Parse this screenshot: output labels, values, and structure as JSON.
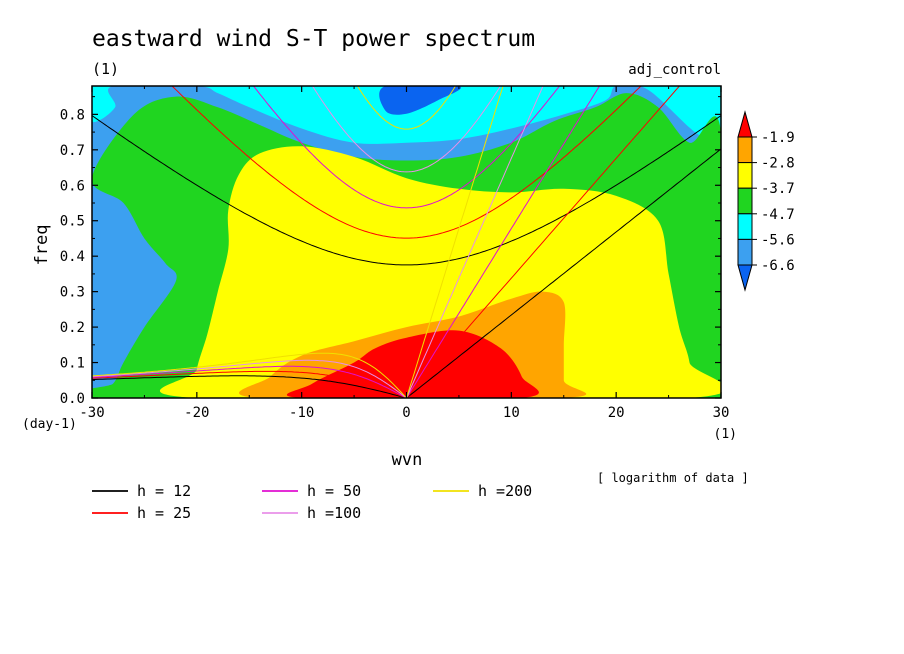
{
  "chart_data": {
    "type": "heatmap",
    "title": "eastward wind S-T power spectrum",
    "subtitle_left": "(1)",
    "subtitle_right": "adj_control",
    "xlabel": "wvn",
    "ylabel": "freq",
    "x_unit": "(1)",
    "y_unit": "(day-1)",
    "xlim": [
      -30,
      30
    ],
    "ylim": [
      0,
      0.88
    ],
    "xticks": [
      -30,
      -20,
      -10,
      0,
      10,
      20,
      30
    ],
    "xtick_labels": [
      "-30",
      "-20",
      "-10",
      "0",
      "10",
      "20",
      "30"
    ],
    "yticks": [
      0,
      0.1,
      0.2,
      0.3,
      0.4,
      0.5,
      0.6,
      0.7,
      0.8
    ],
    "ytick_labels": [
      "0.0",
      "0.1",
      "0.2",
      "0.3",
      "0.4",
      "0.5",
      "0.6",
      "0.7",
      "0.8"
    ],
    "note": "[ logarithm of data ]",
    "colorbar": {
      "levels": [
        "-1.9",
        "-2.8",
        "-3.7",
        "-4.7",
        "-5.6",
        "-6.6"
      ],
      "colors": [
        "#0a64f0",
        "#3ca0f0",
        "#00ffff",
        "#20d520",
        "#ffff00",
        "#ffa500",
        "#ff0000"
      ]
    },
    "fill_colors": {
      "l0": "#3ca0f0",
      "l1": "#00ffff",
      "l2": "#20d520",
      "l3": "#ffff00",
      "l4": "#ffa500",
      "l5": "#ff0000",
      "top": "#0a64f0"
    },
    "dispersion_curves": [
      {
        "label": "h = 12",
        "h": 12,
        "color": "#000000"
      },
      {
        "label": "h = 25",
        "h": 25,
        "color": "#ff0000"
      },
      {
        "label": "h = 50",
        "h": 50,
        "color": "#e010d0"
      },
      {
        "label": "h =100",
        "h": 100,
        "color": "#e890e8"
      },
      {
        "label": "h =200",
        "h": 200,
        "color": "#f0e000"
      }
    ],
    "regions": {
      "blue_top": [
        [
          -2,
          0.88
        ],
        [
          -2,
          0.81
        ],
        [
          0,
          0.802
        ],
        [
          3,
          0.84
        ],
        [
          5,
          0.88
        ]
      ],
      "l1": [
        [
          -28,
          0.88
        ],
        [
          -27.8,
          0.82
        ],
        [
          -30,
          0.78
        ],
        [
          -30,
          0.88
        ],
        [
          30,
          0.88
        ],
        [
          30,
          0.76
        ],
        [
          28,
          0.74
        ],
        [
          23,
          0.87
        ],
        [
          20,
          0.88
        ],
        [
          19,
          0.84
        ],
        [
          15,
          0.8
        ],
        [
          10,
          0.76
        ],
        [
          5,
          0.73
        ],
        [
          0,
          0.72
        ],
        [
          -5,
          0.72
        ],
        [
          -10,
          0.76
        ],
        [
          -15,
          0.82
        ],
        [
          -18,
          0.86
        ],
        [
          -20,
          0.88
        ]
      ],
      "l2": [
        [
          -30,
          0.62
        ],
        [
          -27,
          0.55
        ],
        [
          -25,
          0.45
        ],
        [
          -23,
          0.38
        ],
        [
          -22,
          0.33
        ],
        [
          -25,
          0.2
        ],
        [
          -27,
          0.1
        ],
        [
          -28,
          0.04
        ],
        [
          -30,
          0.0
        ],
        [
          30,
          0.0
        ],
        [
          30,
          0.75
        ],
        [
          27,
          0.72
        ],
        [
          24,
          0.82
        ],
        [
          21,
          0.86
        ],
        [
          18,
          0.82
        ],
        [
          14,
          0.78
        ],
        [
          10,
          0.72
        ],
        [
          5,
          0.68
        ],
        [
          0,
          0.67
        ],
        [
          -5,
          0.68
        ],
        [
          -10,
          0.72
        ],
        [
          -14,
          0.77
        ],
        [
          -18,
          0.82
        ],
        [
          -22,
          0.85
        ],
        [
          -26,
          0.8
        ]
      ],
      "l3": [
        [
          -20,
          0.0
        ],
        [
          -20,
          0.08
        ],
        [
          -19,
          0.18
        ],
        [
          -18,
          0.3
        ],
        [
          -17,
          0.42
        ],
        [
          -17,
          0.53
        ],
        [
          -16,
          0.63
        ],
        [
          -14,
          0.69
        ],
        [
          -10,
          0.71
        ],
        [
          -5,
          0.68
        ],
        [
          0,
          0.62
        ],
        [
          5,
          0.59
        ],
        [
          10,
          0.58
        ],
        [
          15,
          0.59
        ],
        [
          20,
          0.57
        ],
        [
          24,
          0.5
        ],
        [
          25,
          0.35
        ],
        [
          26,
          0.2
        ],
        [
          27,
          0.1
        ],
        [
          27,
          0.0
        ]
      ],
      "l4": [
        [
          -20,
          0.0
        ],
        [
          -19.5,
          0.07
        ],
        [
          -18,
          0.15
        ],
        [
          -17,
          0.22
        ],
        [
          -15,
          0.28
        ],
        [
          -13,
          0.36
        ],
        [
          -10,
          0.42
        ],
        [
          -5,
          0.45
        ],
        [
          0,
          0.44
        ],
        [
          5,
          0.42
        ],
        [
          10,
          0.43
        ],
        [
          14,
          0.41
        ],
        [
          17,
          0.35
        ],
        [
          19,
          0.24
        ],
        [
          19,
          0.12
        ],
        [
          19,
          0.0
        ]
      ],
      "l5": [
        [
          -14,
          0.0
        ],
        [
          -13,
          0.06
        ],
        [
          -10,
          0.12
        ],
        [
          -5,
          0.16
        ],
        [
          0,
          0.2
        ],
        [
          5,
          0.23
        ],
        [
          10,
          0.28
        ],
        [
          13,
          0.3
        ],
        [
          15,
          0.27
        ],
        [
          15,
          0.15
        ],
        [
          15,
          0.05
        ],
        [
          15,
          0.0
        ]
      ],
      "l6": [
        [
          -10,
          0.0
        ],
        [
          -9,
          0.04
        ],
        [
          -5,
          0.1
        ],
        [
          -3,
          0.14
        ],
        [
          0,
          0.17
        ],
        [
          5,
          0.19
        ],
        [
          9,
          0.14
        ],
        [
          11,
          0.06
        ],
        [
          11,
          0.0
        ]
      ]
    }
  }
}
